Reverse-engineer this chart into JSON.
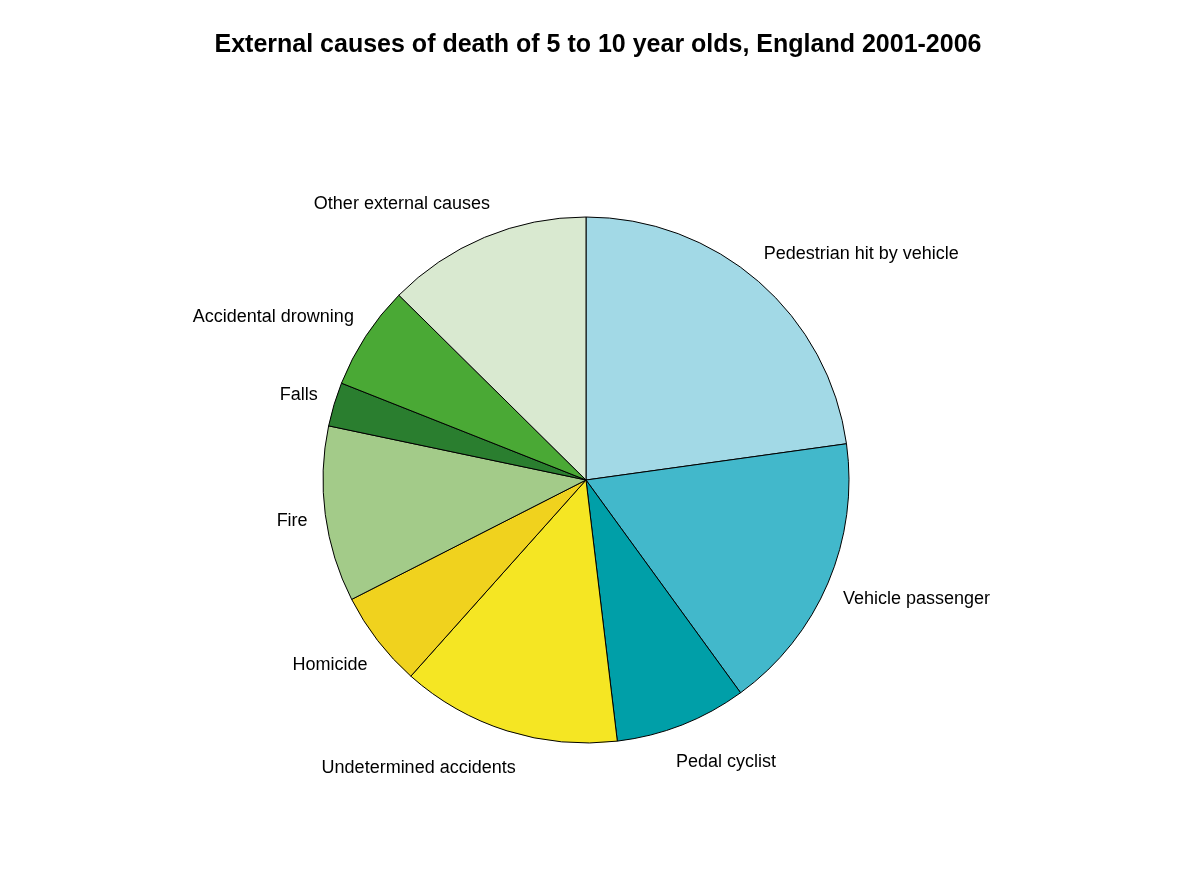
{
  "chart_data": {
    "type": "pie",
    "title": "External causes of death of 5 to 10 year olds, England 2001-2006",
    "categories": [
      "Pedestrian hit by vehicle",
      "Vehicle passenger",
      "Pedal cyclist",
      "Undetermined accidents",
      "Homicide",
      "Fire",
      "Falls",
      "Accidental drowning",
      "Other external causes"
    ],
    "values": [
      22.8,
      17.2,
      8.1,
      13.5,
      5.9,
      10.8,
      2.7,
      6.4,
      12.6
    ],
    "colors": [
      "#a2d9e6",
      "#42b8cb",
      "#009fa8",
      "#f5e623",
      "#f0d21e",
      "#a3cb89",
      "#2a7e2f",
      "#4aa935",
      "#d9e9d0"
    ]
  }
}
